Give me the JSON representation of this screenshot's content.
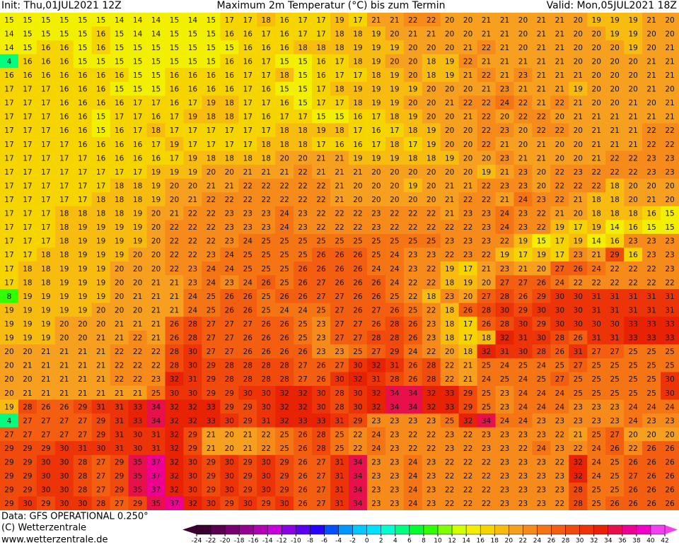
{
  "header": {
    "init": "Init: Thu,01JUL2021 12Z",
    "title": "Maximum 2m Temperatur (°C) bis zum Termin",
    "valid": "Valid: Mon,05JUL2021 18Z"
  },
  "footer": {
    "data": "Data: GFS OPERATIONAL 0.250°",
    "copyright": "(C) Wetterzentrale",
    "url": "www.wetterzentrale.de"
  },
  "scale": {
    "ticks": [
      -24,
      -22,
      -20,
      -18,
      -16,
      -14,
      -12,
      -10,
      -8,
      -6,
      -4,
      -2,
      0,
      2,
      4,
      6,
      8,
      10,
      12,
      14,
      16,
      18,
      20,
      22,
      24,
      26,
      28,
      30,
      32,
      34,
      36,
      38,
      40,
      42
    ],
    "colors": [
      "#3c0030",
      "#5a0050",
      "#780070",
      "#960090",
      "#b400b4",
      "#c800dc",
      "#8c00e6",
      "#5a00f0",
      "#2800ff",
      "#0050ff",
      "#0096ff",
      "#00c8ff",
      "#00e0ff",
      "#00ffd0",
      "#00ff80",
      "#00ff30",
      "#30ff00",
      "#80ff00",
      "#d0ff00",
      "#f2f000",
      "#f6d400",
      "#f8bc10",
      "#f7a020",
      "#f68a1a",
      "#f57414",
      "#f35e10",
      "#f04a0c",
      "#ec3408",
      "#e82204",
      "#e8104a",
      "#ee0090",
      "#f000c8",
      "#f040f0"
    ]
  },
  "map": {
    "rows": [
      [
        15,
        15,
        15,
        15,
        15,
        15,
        14,
        14,
        14,
        15,
        14,
        15,
        17,
        17,
        18,
        16,
        17,
        17,
        19,
        17,
        21,
        21,
        22,
        22,
        20,
        20,
        21,
        21,
        20,
        21,
        21,
        20,
        19,
        19,
        19,
        21,
        20
      ],
      [
        14,
        15,
        15,
        15,
        15,
        16,
        15,
        14,
        14,
        15,
        15,
        15,
        16,
        16,
        17,
        16,
        17,
        17,
        18,
        18,
        19,
        20,
        21,
        21,
        20,
        20,
        21,
        21,
        20,
        21,
        21,
        20,
        20,
        19,
        19,
        20,
        20
      ],
      [
        14,
        15,
        16,
        16,
        15,
        16,
        15,
        15,
        15,
        15,
        15,
        15,
        15,
        16,
        16,
        16,
        18,
        18,
        18,
        19,
        19,
        19,
        20,
        20,
        20,
        21,
        22,
        21,
        20,
        21,
        21,
        20,
        20,
        20,
        19,
        20,
        21
      ],
      [
        4,
        16,
        16,
        16,
        15,
        15,
        15,
        15,
        15,
        15,
        15,
        15,
        16,
        16,
        17,
        15,
        15,
        16,
        17,
        18,
        19,
        20,
        20,
        18,
        19,
        22,
        21,
        21,
        21,
        21,
        21,
        20,
        20,
        20,
        20,
        21,
        21
      ],
      [
        16,
        16,
        16,
        16,
        16,
        16,
        16,
        15,
        15,
        16,
        16,
        16,
        16,
        17,
        17,
        18,
        15,
        16,
        17,
        17,
        18,
        19,
        20,
        18,
        19,
        21,
        22,
        21,
        23,
        21,
        21,
        21,
        20,
        20,
        20,
        21,
        21
      ],
      [
        17,
        17,
        17,
        16,
        16,
        16,
        15,
        15,
        15,
        16,
        16,
        16,
        16,
        17,
        16,
        15,
        15,
        17,
        18,
        19,
        19,
        19,
        19,
        20,
        20,
        20,
        21,
        23,
        21,
        21,
        21,
        19,
        20,
        20,
        20,
        21,
        20
      ],
      [
        17,
        17,
        17,
        16,
        16,
        16,
        16,
        17,
        17,
        16,
        17,
        19,
        18,
        17,
        17,
        16,
        15,
        17,
        17,
        18,
        19,
        19,
        20,
        20,
        21,
        22,
        22,
        24,
        22,
        21,
        22,
        21,
        20,
        20,
        21,
        20,
        21
      ],
      [
        17,
        17,
        17,
        16,
        16,
        15,
        17,
        17,
        16,
        17,
        19,
        18,
        18,
        17,
        16,
        17,
        17,
        15,
        15,
        16,
        17,
        18,
        19,
        20,
        20,
        21,
        22,
        20,
        22,
        22,
        20,
        21,
        21,
        21,
        21,
        21,
        21
      ],
      [
        17,
        17,
        17,
        16,
        16,
        15,
        16,
        17,
        18,
        17,
        17,
        17,
        17,
        17,
        17,
        18,
        18,
        19,
        18,
        17,
        16,
        17,
        18,
        19,
        20,
        20,
        22,
        23,
        20,
        22,
        22,
        20,
        21,
        21,
        21,
        22,
        22
      ],
      [
        17,
        17,
        17,
        17,
        16,
        16,
        16,
        16,
        17,
        19,
        17,
        17,
        17,
        17,
        18,
        18,
        18,
        17,
        16,
        16,
        17,
        18,
        17,
        19,
        20,
        20,
        22,
        21,
        20,
        21,
        20,
        20,
        21,
        21,
        21,
        22,
        22
      ],
      [
        17,
        17,
        17,
        17,
        17,
        16,
        16,
        16,
        16,
        17,
        19,
        18,
        18,
        18,
        18,
        20,
        20,
        21,
        21,
        19,
        19,
        19,
        18,
        18,
        19,
        20,
        20,
        23,
        21,
        21,
        20,
        20,
        21,
        22,
        22,
        23,
        23
      ],
      [
        17,
        17,
        17,
        17,
        17,
        17,
        17,
        17,
        19,
        19,
        19,
        20,
        20,
        21,
        21,
        21,
        22,
        21,
        21,
        21,
        20,
        20,
        20,
        20,
        20,
        20,
        19,
        21,
        23,
        20,
        22,
        23,
        22,
        22,
        22,
        23,
        23
      ],
      [
        17,
        17,
        17,
        17,
        17,
        17,
        18,
        18,
        19,
        20,
        20,
        21,
        21,
        22,
        22,
        22,
        22,
        22,
        21,
        20,
        20,
        20,
        19,
        20,
        21,
        21,
        22,
        23,
        23,
        20,
        22,
        22,
        22,
        18,
        20,
        20,
        20
      ],
      [
        17,
        17,
        17,
        17,
        17,
        18,
        18,
        18,
        19,
        20,
        21,
        22,
        22,
        22,
        22,
        22,
        22,
        22,
        21,
        20,
        20,
        20,
        20,
        20,
        21,
        22,
        22,
        21,
        24,
        23,
        22,
        21,
        18,
        18,
        20,
        21,
        20
      ],
      [
        17,
        17,
        17,
        18,
        18,
        18,
        18,
        19,
        20,
        21,
        22,
        22,
        23,
        23,
        23,
        24,
        23,
        22,
        22,
        22,
        23,
        22,
        22,
        22,
        21,
        23,
        23,
        24,
        23,
        22,
        21,
        20,
        18,
        18,
        18,
        16,
        15
      ],
      [
        17,
        17,
        17,
        18,
        19,
        19,
        19,
        19,
        20,
        22,
        22,
        22,
        23,
        23,
        23,
        24,
        23,
        22,
        22,
        22,
        23,
        22,
        22,
        22,
        22,
        22,
        23,
        24,
        23,
        22,
        19,
        17,
        19,
        14,
        16,
        15,
        15
      ],
      [
        17,
        17,
        17,
        18,
        19,
        19,
        19,
        19,
        20,
        22,
        22,
        22,
        23,
        24,
        25,
        25,
        25,
        25,
        25,
        25,
        25,
        25,
        25,
        25,
        23,
        23,
        23,
        22,
        19,
        15,
        17,
        19,
        14,
        16,
        23,
        23,
        23
      ],
      [
        17,
        17,
        18,
        18,
        19,
        19,
        19,
        20,
        20,
        22,
        22,
        23,
        24,
        25,
        25,
        25,
        25,
        26,
        26,
        26,
        25,
        24,
        23,
        23,
        22,
        23,
        22,
        19,
        17,
        19,
        17,
        23,
        21,
        29,
        16,
        23,
        23
      ],
      [
        17,
        18,
        18,
        19,
        19,
        19,
        20,
        20,
        20,
        22,
        23,
        24,
        24,
        25,
        25,
        25,
        26,
        26,
        26,
        26,
        24,
        24,
        23,
        22,
        19,
        17,
        21,
        23,
        21,
        20,
        27,
        26,
        24,
        22,
        22,
        22,
        23
      ],
      [
        17,
        18,
        18,
        19,
        19,
        19,
        20,
        20,
        21,
        21,
        23,
        24,
        23,
        24,
        26,
        25,
        26,
        27,
        26,
        26,
        26,
        24,
        22,
        22,
        18,
        19,
        20,
        27,
        27,
        26,
        24,
        22,
        22,
        22,
        22,
        22,
        22
      ],
      [
        8,
        19,
        19,
        19,
        19,
        19,
        20,
        21,
        21,
        21,
        24,
        25,
        26,
        26,
        25,
        26,
        26,
        27,
        27,
        26,
        26,
        25,
        22,
        18,
        23,
        20,
        27,
        28,
        26,
        29,
        30,
        30,
        31,
        31,
        31,
        31,
        31
      ],
      [
        19,
        19,
        19,
        19,
        19,
        20,
        20,
        20,
        21,
        21,
        24,
        25,
        26,
        26,
        25,
        24,
        24,
        25,
        27,
        26,
        27,
        26,
        25,
        22,
        18,
        26,
        28,
        30,
        29,
        30,
        30,
        30,
        31,
        31,
        31,
        31,
        31
      ],
      [
        19,
        19,
        19,
        20,
        20,
        20,
        21,
        21,
        21,
        26,
        28,
        27,
        27,
        27,
        26,
        26,
        25,
        23,
        27,
        27,
        26,
        28,
        26,
        23,
        18,
        17,
        26,
        28,
        30,
        29,
        30,
        30,
        30,
        30,
        33,
        33,
        33
      ],
      [
        19,
        19,
        19,
        20,
        20,
        21,
        21,
        22,
        21,
        26,
        28,
        27,
        27,
        26,
        26,
        26,
        25,
        23,
        27,
        27,
        28,
        28,
        26,
        23,
        18,
        17,
        18,
        32,
        31,
        30,
        28,
        26,
        31,
        31,
        33,
        33,
        33
      ],
      [
        20,
        20,
        21,
        21,
        21,
        21,
        22,
        22,
        22,
        28,
        30,
        27,
        27,
        26,
        26,
        26,
        26,
        23,
        23,
        25,
        27,
        29,
        24,
        22,
        20,
        18,
        32,
        31,
        30,
        28,
        26,
        31,
        27,
        27,
        25,
        25,
        25
      ],
      [
        20,
        21,
        21,
        21,
        21,
        21,
        22,
        22,
        22,
        28,
        30,
        29,
        28,
        28,
        28,
        28,
        27,
        26,
        27,
        30,
        32,
        31,
        26,
        28,
        22,
        21,
        25,
        24,
        25,
        24,
        25,
        27,
        25,
        25,
        25,
        25,
        25
      ],
      [
        20,
        20,
        21,
        21,
        21,
        21,
        22,
        22,
        23,
        32,
        31,
        29,
        28,
        28,
        28,
        28,
        27,
        26,
        30,
        32,
        31,
        28,
        26,
        28,
        22,
        21,
        24,
        25,
        24,
        25,
        27,
        25,
        25,
        25,
        25,
        25,
        30
      ],
      [
        20,
        21,
        21,
        21,
        21,
        21,
        21,
        21,
        25,
        30,
        30,
        29,
        29,
        30,
        30,
        32,
        32,
        30,
        28,
        30,
        32,
        34,
        34,
        32,
        33,
        29,
        25,
        23,
        24,
        24,
        24,
        25,
        25,
        25,
        25,
        25,
        30
      ],
      [
        19,
        28,
        26,
        26,
        29,
        31,
        31,
        33,
        34,
        32,
        32,
        33,
        29,
        29,
        30,
        32,
        32,
        30,
        28,
        30,
        32,
        34,
        34,
        32,
        33,
        29,
        25,
        23,
        24,
        24,
        24,
        23,
        23,
        23,
        24,
        24,
        24
      ],
      [
        4,
        27,
        27,
        27,
        27,
        29,
        31,
        33,
        34,
        32,
        32,
        33,
        30,
        29,
        31,
        32,
        33,
        33,
        31,
        29,
        23,
        23,
        23,
        23,
        25,
        32,
        34,
        24,
        24,
        23,
        23,
        23,
        23,
        23,
        24,
        23,
        23
      ],
      [
        27,
        27,
        27,
        27,
        27,
        29,
        31,
        30,
        31,
        32,
        29,
        21,
        20,
        21,
        22,
        25,
        26,
        28,
        25,
        22,
        24,
        23,
        22,
        22,
        23,
        22,
        23,
        23,
        23,
        23,
        22,
        21,
        25,
        27,
        20,
        20,
        20
      ],
      [
        29,
        29,
        29,
        30,
        31,
        30,
        31,
        30,
        31,
        32,
        29,
        21,
        20,
        21,
        22,
        25,
        26,
        28,
        25,
        22,
        24,
        23,
        22,
        22,
        23,
        22,
        23,
        23,
        22,
        24,
        23,
        22,
        24,
        26,
        22,
        26,
        26
      ],
      [
        29,
        29,
        30,
        30,
        28,
        27,
        29,
        35,
        37,
        32,
        30,
        29,
        30,
        29,
        30,
        29,
        26,
        27,
        31,
        34,
        23,
        23,
        24,
        23,
        22,
        22,
        22,
        23,
        23,
        23,
        22,
        32,
        24,
        25,
        26,
        26,
        26
      ],
      [
        29,
        29,
        30,
        30,
        28,
        27,
        29,
        35,
        37,
        32,
        30,
        29,
        30,
        29,
        30,
        29,
        26,
        27,
        31,
        34,
        23,
        23,
        24,
        23,
        22,
        22,
        22,
        23,
        23,
        23,
        23,
        32,
        24,
        25,
        27,
        26,
        26
      ],
      [
        29,
        29,
        30,
        30,
        28,
        27,
        29,
        35,
        37,
        32,
        30,
        29,
        30,
        29,
        30,
        29,
        26,
        27,
        31,
        34,
        23,
        23,
        24,
        23,
        22,
        22,
        22,
        23,
        23,
        23,
        23,
        28,
        25,
        25,
        26,
        26,
        26
      ],
      [
        29,
        30,
        29,
        30,
        30,
        28,
        27,
        29,
        35,
        37,
        32,
        30,
        29,
        30,
        29,
        30,
        26,
        27,
        31,
        34,
        23,
        23,
        24,
        23,
        22,
        22,
        22,
        23,
        23,
        23,
        22,
        28,
        25,
        26,
        26,
        26,
        26
      ]
    ]
  }
}
